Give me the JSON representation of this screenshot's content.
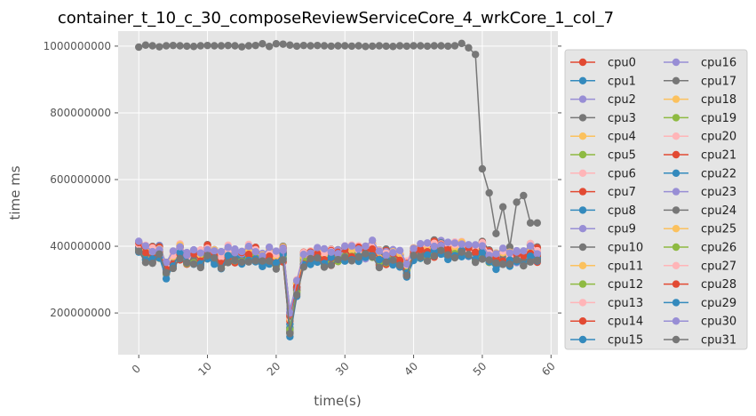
{
  "chart_data": {
    "type": "line",
    "title": "container_t_10_c_30_composeReviewServiceCore_4_wrkCore_1_col_7",
    "xlabel": "time(s)",
    "ylabel": "time ms",
    "xlim": [
      -3,
      61
    ],
    "ylim": [
      75000000,
      1045000000
    ],
    "xticks": [
      0,
      10,
      20,
      30,
      40,
      50,
      60
    ],
    "yticks": [
      200000000,
      400000000,
      600000000,
      800000000,
      1000000000
    ],
    "grid": true,
    "legend": {
      "position": "right",
      "columns": 2
    },
    "x": [
      0,
      1,
      2,
      3,
      4,
      5,
      6,
      7,
      8,
      9,
      10,
      11,
      12,
      13,
      14,
      15,
      16,
      17,
      18,
      19,
      20,
      21,
      22,
      23,
      24,
      25,
      26,
      27,
      28,
      29,
      30,
      31,
      32,
      33,
      34,
      35,
      36,
      37,
      38,
      39,
      40,
      41,
      42,
      43,
      44,
      45,
      46,
      47,
      48,
      49,
      50,
      51,
      52,
      53,
      54,
      55,
      56,
      57,
      58
    ],
    "base_profile": [
      398000000,
      378000000,
      372000000,
      382000000,
      328000000,
      355000000,
      382000000,
      362000000,
      368000000,
      362000000,
      382000000,
      368000000,
      352000000,
      375000000,
      372000000,
      368000000,
      378000000,
      372000000,
      358000000,
      368000000,
      358000000,
      378000000,
      170000000,
      275000000,
      358000000,
      368000000,
      372000000,
      362000000,
      368000000,
      372000000,
      382000000,
      378000000,
      378000000,
      382000000,
      388000000,
      365000000,
      368000000,
      368000000,
      362000000,
      328000000,
      378000000,
      382000000,
      385000000,
      392000000,
      395000000,
      388000000,
      385000000,
      392000000,
      385000000,
      378000000,
      388000000,
      368000000,
      358000000,
      365000000,
      362000000,
      368000000,
      362000000,
      382000000,
      372000000
    ],
    "series": [
      {
        "name": "cpu0",
        "color": "#E24A33",
        "offset": 8000000
      },
      {
        "name": "cpu1",
        "color": "#348ABD",
        "offset": -6000000
      },
      {
        "name": "cpu2",
        "color": "#988ED5",
        "offset": 4000000
      },
      {
        "name": "cpu3",
        "color": "#777777",
        "offset": -10000000
      },
      {
        "name": "cpu4",
        "color": "#FBC15E",
        "offset": 2000000
      },
      {
        "name": "cpu5",
        "color": "#8EBA42",
        "offset": 12000000
      },
      {
        "name": "cpu6",
        "color": "#FFB5B8",
        "offset": -4000000
      },
      {
        "name": "cpu7",
        "color": "#E24A33",
        "offset": 6000000
      },
      {
        "name": "cpu8",
        "color": "#348ABD",
        "offset": -2000000
      },
      {
        "name": "cpu9",
        "color": "#988ED5",
        "offset": 10000000
      },
      {
        "name": "cpu10",
        "color": "#777777",
        "offset": 14000000
      },
      {
        "name": "cpu11",
        "color": "#FBC15E",
        "offset": -8000000
      },
      {
        "name": "cpu12",
        "color": "#8EBA42",
        "offset": 0
      },
      {
        "name": "cpu13",
        "color": "#FFB5B8",
        "offset": 16000000
      },
      {
        "name": "cpu14",
        "color": "#E24A33",
        "offset": -12000000
      },
      {
        "name": "cpu15",
        "color": "#348ABD",
        "offset": 4000000
      },
      {
        "name": "cpu16",
        "color": "#988ED5",
        "offset": -6000000
      },
      {
        "name": "cpu17",
        "color": "#777777",
        "values": [
          997000000,
          1003000000,
          1001000000,
          998000000,
          1001000000,
          1002000000,
          1001000000,
          1000000000,
          999000000,
          1001000000,
          1002000000,
          1001000000,
          1001000000,
          1002000000,
          1001000000,
          998000000,
          1001000000,
          1002000000,
          1007000000,
          999000000,
          1007000000,
          1006000000,
          1003000000,
          1000000000,
          1002000000,
          1001000000,
          1002000000,
          1001000000,
          1000000000,
          1001000000,
          1001000000,
          1000000000,
          1001000000,
          999000000,
          1000000000,
          1001000000,
          1000000000,
          999000000,
          1001000000,
          1000000000,
          1001000000,
          1001000000,
          1000000000,
          1001000000,
          1001000000,
          1000000000,
          1001000000,
          1008000000,
          995000000,
          975000000,
          632000000,
          560000000,
          438000000,
          518000000,
          398000000,
          532000000,
          552000000,
          470000000,
          470000000
        ]
      },
      {
        "name": "cpu18",
        "color": "#FBC15E",
        "offset": 8000000
      },
      {
        "name": "cpu19",
        "color": "#8EBA42",
        "offset": -4000000
      },
      {
        "name": "cpu20",
        "color": "#FFB5B8",
        "offset": 2000000
      },
      {
        "name": "cpu21",
        "color": "#E24A33",
        "offset": 12000000
      },
      {
        "name": "cpu22",
        "color": "#348ABD",
        "offset": -10000000
      },
      {
        "name": "cpu23",
        "color": "#988ED5",
        "offset": 6000000
      },
      {
        "name": "cpu24",
        "color": "#777777",
        "offset": -2000000
      },
      {
        "name": "cpu25",
        "color": "#FBC15E",
        "offset": 10000000
      },
      {
        "name": "cpu26",
        "color": "#8EBA42",
        "offset": -8000000
      },
      {
        "name": "cpu27",
        "color": "#FFB5B8",
        "offset": 14000000
      },
      {
        "name": "cpu28",
        "color": "#E24A33",
        "offset": 0
      },
      {
        "name": "cpu29",
        "color": "#348ABD",
        "offset": -14000000
      },
      {
        "name": "cpu30",
        "color": "#988ED5",
        "offset": 18000000
      },
      {
        "name": "cpu31",
        "color": "#777777",
        "offset": -16000000
      }
    ]
  }
}
